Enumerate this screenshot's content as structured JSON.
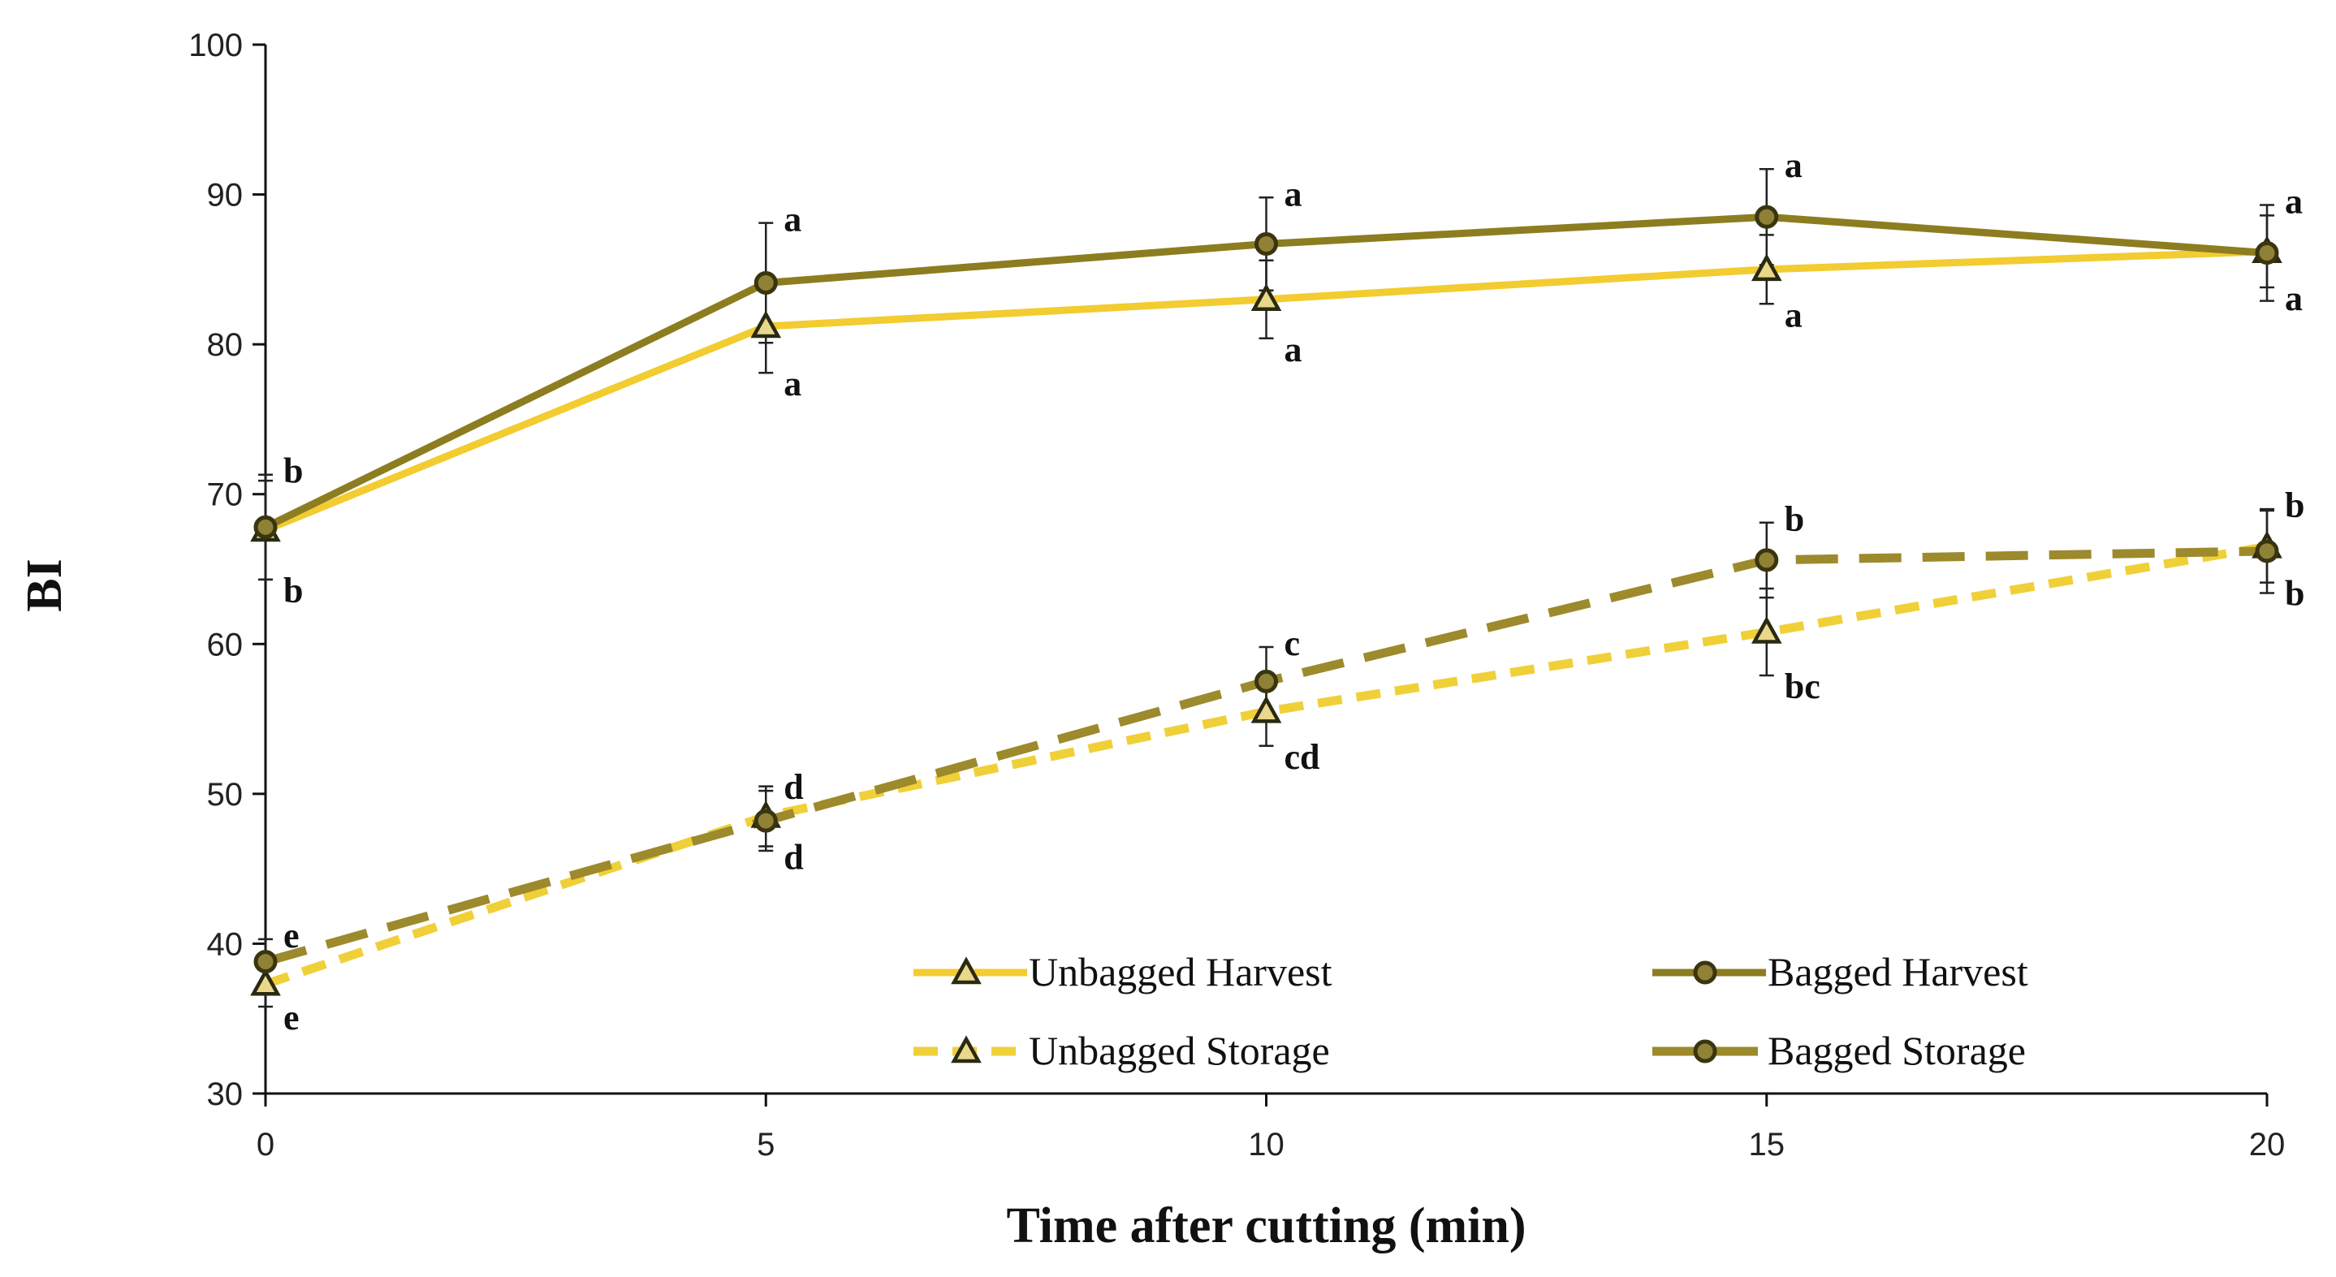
{
  "chart_data": {
    "type": "line",
    "title": "",
    "xlabel": "Time after cutting (min)",
    "ylabel": "BI",
    "x": [
      0,
      5,
      10,
      15,
      20
    ],
    "xlim": [
      0,
      20
    ],
    "ylim": [
      30,
      100
    ],
    "xticks": [
      "0",
      "5",
      "10",
      "15",
      "20"
    ],
    "yticks": [
      "30",
      "40",
      "50",
      "60",
      "70",
      "80",
      "90",
      "100"
    ],
    "grid": false,
    "legend_position": "lower-right",
    "series": [
      {
        "name": "Unbagged Harvest",
        "color": "#f2cc30",
        "marker": "triangle",
        "dash": "solid",
        "values": [
          67.6,
          81.2,
          83.0,
          85.0,
          86.2
        ],
        "errors": [
          3.3,
          3.1,
          2.6,
          2.3,
          2.4
        ],
        "letters": [
          "b",
          "a",
          "a",
          "a",
          "a"
        ],
        "letter_side": "below"
      },
      {
        "name": "Bagged Harvest",
        "color": "#8c7d20",
        "marker": "circle",
        "dash": "solid",
        "values": [
          67.8,
          84.1,
          86.7,
          88.5,
          86.1
        ],
        "errors": [
          3.5,
          4.0,
          3.1,
          3.2,
          3.2
        ],
        "letters": [
          "b",
          "a",
          "a",
          "a",
          "a"
        ],
        "letter_side": "above"
      },
      {
        "name": "Unbagged Storage",
        "color": "#f0d038",
        "marker": "triangle",
        "dash": "dashed",
        "values": [
          37.3,
          48.5,
          55.5,
          60.8,
          66.5
        ],
        "errors": [
          1.5,
          2.0,
          2.3,
          2.9,
          2.4
        ],
        "letters": [
          "e",
          "d",
          "cd",
          "bc",
          "b"
        ],
        "letter_side": "below"
      },
      {
        "name": "Bagged Storage",
        "color": "#9c8a2c",
        "marker": "circle",
        "dash": "dashed",
        "values": [
          38.8,
          48.2,
          57.5,
          65.6,
          66.2
        ],
        "errors": [
          1.5,
          2.0,
          2.3,
          2.5,
          2.8
        ],
        "letters": [
          "e",
          "d",
          "c",
          "b",
          "b"
        ],
        "letter_side": "above"
      }
    ]
  }
}
